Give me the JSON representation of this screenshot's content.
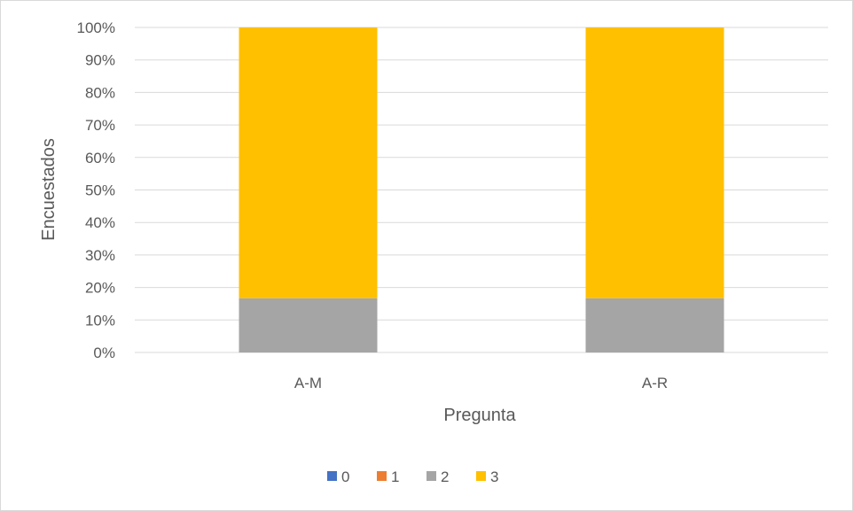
{
  "chart_data": {
    "type": "bar",
    "stacked": "percent",
    "categories": [
      "A-M",
      "A-R"
    ],
    "series": [
      {
        "name": "0",
        "values": [
          0,
          0
        ],
        "color": "#4472c4"
      },
      {
        "name": "1",
        "values": [
          0,
          0
        ],
        "color": "#ed7d31"
      },
      {
        "name": "2",
        "values": [
          16.7,
          16.7
        ],
        "color": "#a5a5a5"
      },
      {
        "name": "3",
        "values": [
          83.3,
          83.3
        ],
        "color": "#ffc000"
      }
    ],
    "y_ticks": [
      "0%",
      "10%",
      "20%",
      "30%",
      "40%",
      "50%",
      "60%",
      "70%",
      "80%",
      "90%",
      "100%"
    ],
    "xlabel": "Pregunta",
    "ylabel": "Encuestados",
    "ylim": [
      0,
      100
    ],
    "grid": true,
    "legend": "bottom"
  }
}
